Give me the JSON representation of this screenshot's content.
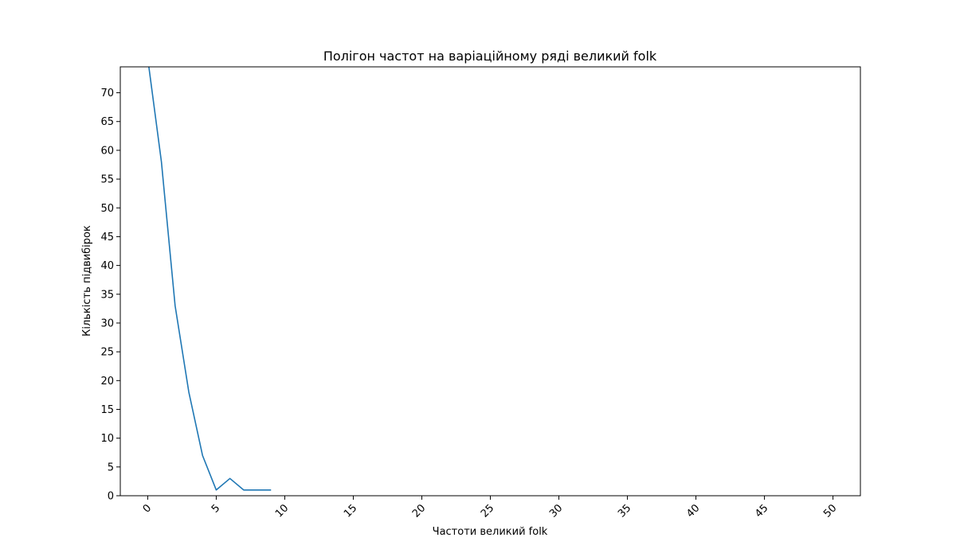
{
  "chart_data": {
    "type": "line",
    "title": "Полігон частот на варіаційному ряді великий folk",
    "xlabel": "Частоти великий folk",
    "ylabel": "Кількість підвибірок",
    "xlim": [
      -2,
      52
    ],
    "ylim": [
      0,
      74.5
    ],
    "xticks": [
      0,
      5,
      10,
      15,
      20,
      25,
      30,
      35,
      40,
      45,
      50
    ],
    "yticks": [
      0,
      5,
      10,
      15,
      20,
      25,
      30,
      35,
      40,
      45,
      50,
      55,
      60,
      65,
      70
    ],
    "xtick_rotation": -45,
    "grid": false,
    "line_color": "#1f77b4",
    "series": [
      {
        "x": [
          0,
          1,
          2,
          3,
          4,
          5,
          6,
          7,
          8,
          9
        ],
        "values": [
          76,
          58,
          33,
          18,
          7,
          1,
          3,
          1,
          1,
          1
        ]
      }
    ]
  }
}
